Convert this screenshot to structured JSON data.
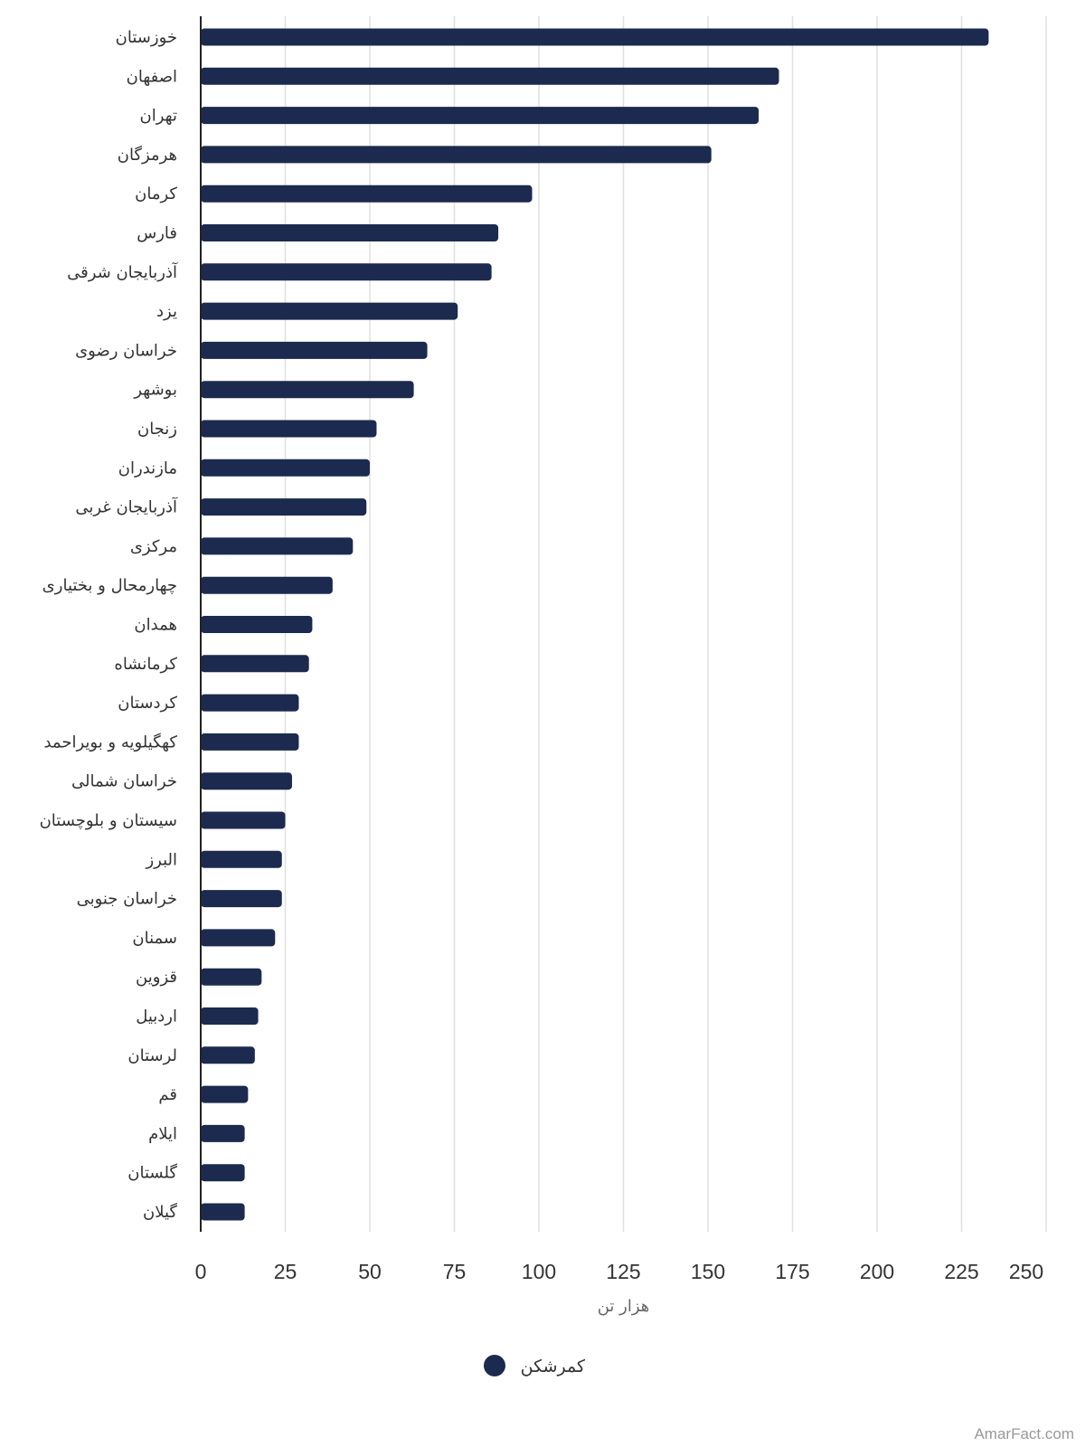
{
  "chart_data": {
    "type": "bar",
    "orientation": "horizontal",
    "xlabel": "هزار تن",
    "xlim": [
      0,
      250
    ],
    "xticks": [
      0,
      25,
      50,
      75,
      100,
      125,
      150,
      175,
      200,
      225,
      250
    ],
    "grid": true,
    "legend_position": "bottom",
    "categories": [
      "خوزستان",
      "اصفهان",
      "تهران",
      "هرمزگان",
      "کرمان",
      "فارس",
      "آذربایجان شرقی",
      "یزد",
      "خراسان رضوی",
      "بوشهر",
      "زنجان",
      "مازندران",
      "آذربایجان غربی",
      "مرکزی",
      "چهارمحال و بختیاری",
      "همدان",
      "کرمانشاه",
      "کردستان",
      "کهگیلویه و بویراحمد",
      "خراسان شمالی",
      "سیستان و بلوچستان",
      "البرز",
      "خراسان جنوبی",
      "سمنان",
      "قزوین",
      "اردبیل",
      "لرستان",
      "قم",
      "ایلام",
      "گلستان",
      "گیلان"
    ],
    "series": [
      {
        "name": "کمرشکن",
        "color": "#1b2a4e",
        "values": [
          233,
          171,
          165,
          151,
          98,
          88,
          86,
          76,
          67,
          63,
          52,
          50,
          49,
          45,
          39,
          33,
          32,
          29,
          29,
          27,
          25,
          24,
          24,
          22,
          18,
          17,
          16,
          14,
          13,
          13,
          13
        ]
      }
    ]
  },
  "watermark": "AmarFact.com"
}
